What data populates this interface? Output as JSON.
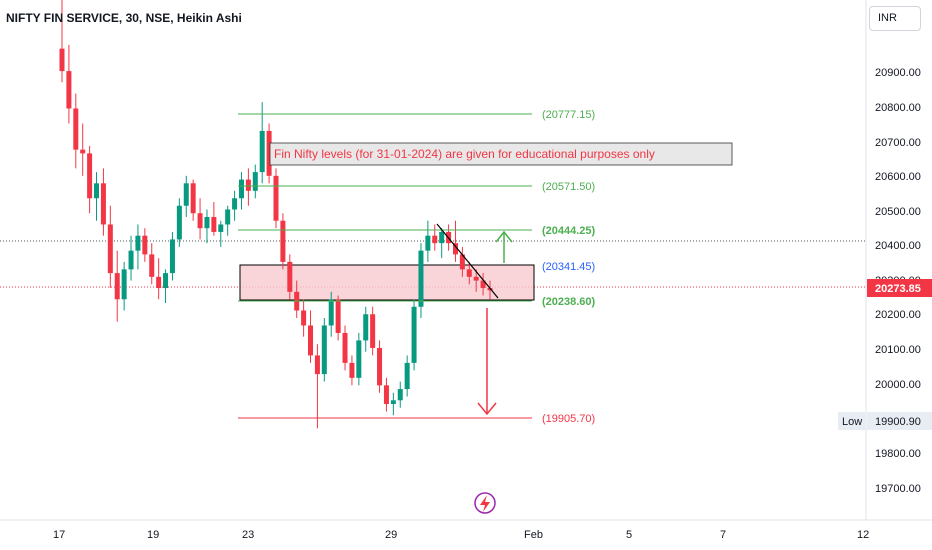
{
  "header": {
    "symbol_title": "NIFTY FIN SERVICE, 30, NSE, Heikin Ashi"
  },
  "currency_button": "INR",
  "annotation_text": "Fin Nifty levels (for 31-01-2024) are given for educational purposes only",
  "price_scale": {
    "ticks": [
      "20900.00",
      "20800.00",
      "20700.00",
      "20600.00",
      "20500.00",
      "20400.00",
      "20300.00",
      "20200.00",
      "20100.00",
      "20000.00",
      "19800.00",
      "19700.00"
    ],
    "current_price": "20273.85",
    "low_label": "Low",
    "low_value": "19900.90"
  },
  "time_scale": {
    "ticks": [
      "17",
      "19",
      "23",
      "29",
      "Feb",
      "5",
      "7",
      "12"
    ]
  },
  "levels": [
    {
      "label": "(20777.15)",
      "value": 20777.15,
      "color": "#4caf50"
    },
    {
      "label": "(20571.50)",
      "value": 20571.5,
      "color": "#4caf50"
    },
    {
      "label": "(20444.25)",
      "value": 20444.25,
      "color": "#4caf50"
    },
    {
      "label": "(20341.45)",
      "value": 20341.45,
      "color": "#2962ff"
    },
    {
      "label": "(20238.60)",
      "value": 20238.6,
      "color": "#4caf50"
    },
    {
      "label": "(19905.70)",
      "value": 19905.7,
      "color": "#f23645"
    }
  ],
  "colors": {
    "up": "#089981",
    "down": "#f23645",
    "zone_fill": "#f8c9cf",
    "level_green": "#4caf50",
    "level_blue": "#2962ff",
    "level_red": "#f23645"
  },
  "chart_data": {
    "type": "candlestick",
    "style": "Heikin Ashi",
    "interval": "30",
    "ylim": [
      19660,
      21050
    ],
    "current_price": 20273.85,
    "session_low": 19900.9,
    "ohlc": [
      [
        20920,
        21050,
        20830,
        20860
      ],
      [
        20860,
        20930,
        20720,
        20760
      ],
      [
        20760,
        20800,
        20600,
        20650
      ],
      [
        20650,
        20720,
        20580,
        20640
      ],
      [
        20640,
        20660,
        20480,
        20520
      ],
      [
        20520,
        20590,
        20460,
        20560
      ],
      [
        20560,
        20600,
        20420,
        20450
      ],
      [
        20450,
        20500,
        20280,
        20320
      ],
      [
        20320,
        20380,
        20190,
        20250
      ],
      [
        20250,
        20350,
        20220,
        20330
      ],
      [
        20330,
        20420,
        20300,
        20380
      ],
      [
        20380,
        20450,
        20330,
        20420
      ],
      [
        20420,
        20440,
        20350,
        20370
      ],
      [
        20370,
        20400,
        20290,
        20310
      ],
      [
        20310,
        20360,
        20250,
        20280
      ],
      [
        20280,
        20330,
        20240,
        20320
      ],
      [
        20320,
        20430,
        20300,
        20410
      ],
      [
        20410,
        20520,
        20390,
        20500
      ],
      [
        20500,
        20580,
        20470,
        20560
      ],
      [
        20560,
        20570,
        20460,
        20480
      ],
      [
        20480,
        20520,
        20410,
        20440
      ],
      [
        20440,
        20490,
        20400,
        20470
      ],
      [
        20470,
        20510,
        20420,
        20430
      ],
      [
        20430,
        20460,
        20390,
        20450
      ],
      [
        20450,
        20500,
        20420,
        20490
      ],
      [
        20490,
        20540,
        20460,
        20520
      ],
      [
        20520,
        20590,
        20490,
        20570
      ],
      [
        20570,
        20600,
        20500,
        20540
      ],
      [
        20540,
        20610,
        20520,
        20590
      ],
      [
        20590,
        20777,
        20560,
        20700
      ],
      [
        20700,
        20720,
        20560,
        20580
      ],
      [
        20580,
        20600,
        20440,
        20460
      ],
      [
        20460,
        20480,
        20330,
        20350
      ],
      [
        20350,
        20370,
        20250,
        20270
      ],
      [
        20270,
        20300,
        20200,
        20220
      ],
      [
        20220,
        20250,
        20150,
        20180
      ],
      [
        20180,
        20220,
        20080,
        20100
      ],
      [
        20100,
        20130,
        19905,
        20050
      ],
      [
        20050,
        20200,
        20030,
        20180
      ],
      [
        20180,
        20270,
        20150,
        20250
      ],
      [
        20250,
        20260,
        20140,
        20160
      ],
      [
        20160,
        20180,
        20060,
        20080
      ],
      [
        20080,
        20100,
        20020,
        20040
      ],
      [
        20040,
        20160,
        20020,
        20140
      ],
      [
        20140,
        20230,
        20110,
        20210
      ],
      [
        20210,
        20230,
        20100,
        20120
      ],
      [
        20120,
        20140,
        20000,
        20020
      ],
      [
        20020,
        20040,
        19950,
        19970
      ],
      [
        19970,
        20000,
        19940,
        19980
      ],
      [
        19980,
        20030,
        19960,
        20010
      ],
      [
        20010,
        20100,
        19990,
        20080
      ],
      [
        20080,
        20250,
        20060,
        20230
      ],
      [
        20230,
        20400,
        20200,
        20380
      ],
      [
        20380,
        20460,
        20350,
        20420
      ],
      [
        20420,
        20450,
        20380,
        20400
      ],
      [
        20400,
        20440,
        20360,
        20430
      ],
      [
        20430,
        20450,
        20380,
        20400
      ],
      [
        20400,
        20460,
        20350,
        20370
      ],
      [
        20370,
        20390,
        20310,
        20330
      ],
      [
        20330,
        20350,
        20290,
        20310
      ],
      [
        20310,
        20330,
        20270,
        20300
      ],
      [
        20300,
        20320,
        20260,
        20280
      ],
      [
        20280,
        20300,
        20250,
        20274
      ]
    ]
  }
}
